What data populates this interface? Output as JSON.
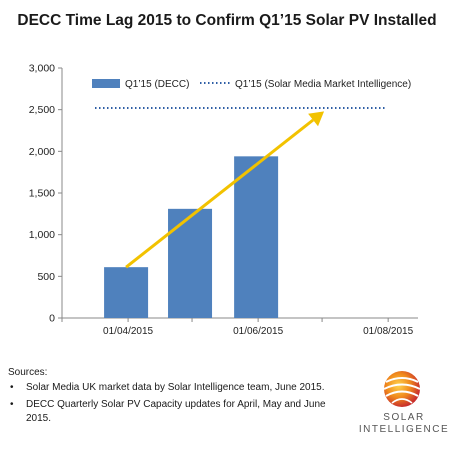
{
  "chart_data": {
    "type": "bar",
    "title": "DECC Time Lag 2015 to Confirm Q1’15 Solar PV Installed",
    "x_tick_labels": [
      "01/04/2015",
      "01/06/2015",
      "01/08/2015"
    ],
    "ylim": [
      0,
      3000
    ],
    "y_ticks": [
      "0",
      "500",
      "1,000",
      "1,500",
      "2,000",
      "2,500",
      "3,000"
    ],
    "series": [
      {
        "name": "Q1’15 (DECC)",
        "type": "bar",
        "color": "#4f81bd",
        "x": [
          "2015-04-01",
          "2015-05-01",
          "2015-06-01"
        ],
        "values": [
          610,
          1310,
          1940
        ]
      },
      {
        "name": "Q1’15 (Solar Media Market Intelligence)",
        "type": "dotted-line",
        "color": "#2e5ea5",
        "value": 2520
      }
    ],
    "trend_arrow": {
      "color": "#f2c200",
      "from": [
        "2015-04-01",
        610
      ],
      "to": [
        "2015-07-01",
        2480
      ]
    },
    "legend_position": "top",
    "grid": false
  },
  "sources": {
    "heading": "Sources:",
    "items": [
      "Solar Media UK market data by Solar Intelligence team, June 2015.",
      "DECC Quarterly Solar PV Capacity updates for April, May and June 2015."
    ]
  },
  "logo": {
    "line1": "SOLAR",
    "line2": "INTELLIGENCE"
  }
}
